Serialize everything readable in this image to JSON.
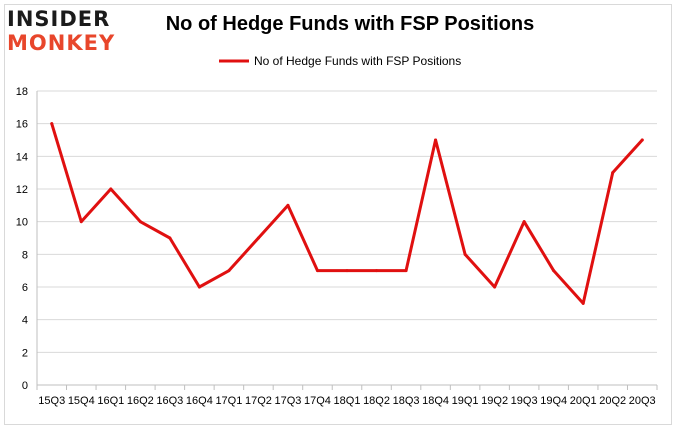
{
  "logo": {
    "line1": "INSIDER",
    "line2": "MONKEY"
  },
  "colors": {
    "series": "#e01010",
    "grid": "#d9d9d9",
    "axis": "#bfbfbf",
    "logo_accent": "#e8462b"
  },
  "chart_data": {
    "type": "line",
    "title": "No of Hedge Funds with FSP Positions",
    "xlabel": "",
    "ylabel": "",
    "ylim": [
      0,
      18
    ],
    "yticks": [
      0,
      2,
      4,
      6,
      8,
      10,
      12,
      14,
      16,
      18
    ],
    "grid": true,
    "legend": "top-center",
    "categories": [
      "15Q3",
      "15Q4",
      "16Q1",
      "16Q2",
      "16Q3",
      "16Q4",
      "17Q1",
      "17Q2",
      "17Q3",
      "17Q4",
      "18Q1",
      "18Q2",
      "18Q3",
      "18Q4",
      "19Q1",
      "19Q2",
      "19Q3",
      "19Q4",
      "20Q1",
      "20Q2",
      "20Q3"
    ],
    "series": [
      {
        "name": "No of Hedge Funds with FSP Positions",
        "values": [
          16,
          10,
          12,
          10,
          9,
          6,
          7,
          9,
          11,
          7,
          7,
          7,
          7,
          15,
          8,
          6,
          10,
          7,
          5,
          13,
          15
        ]
      }
    ]
  }
}
